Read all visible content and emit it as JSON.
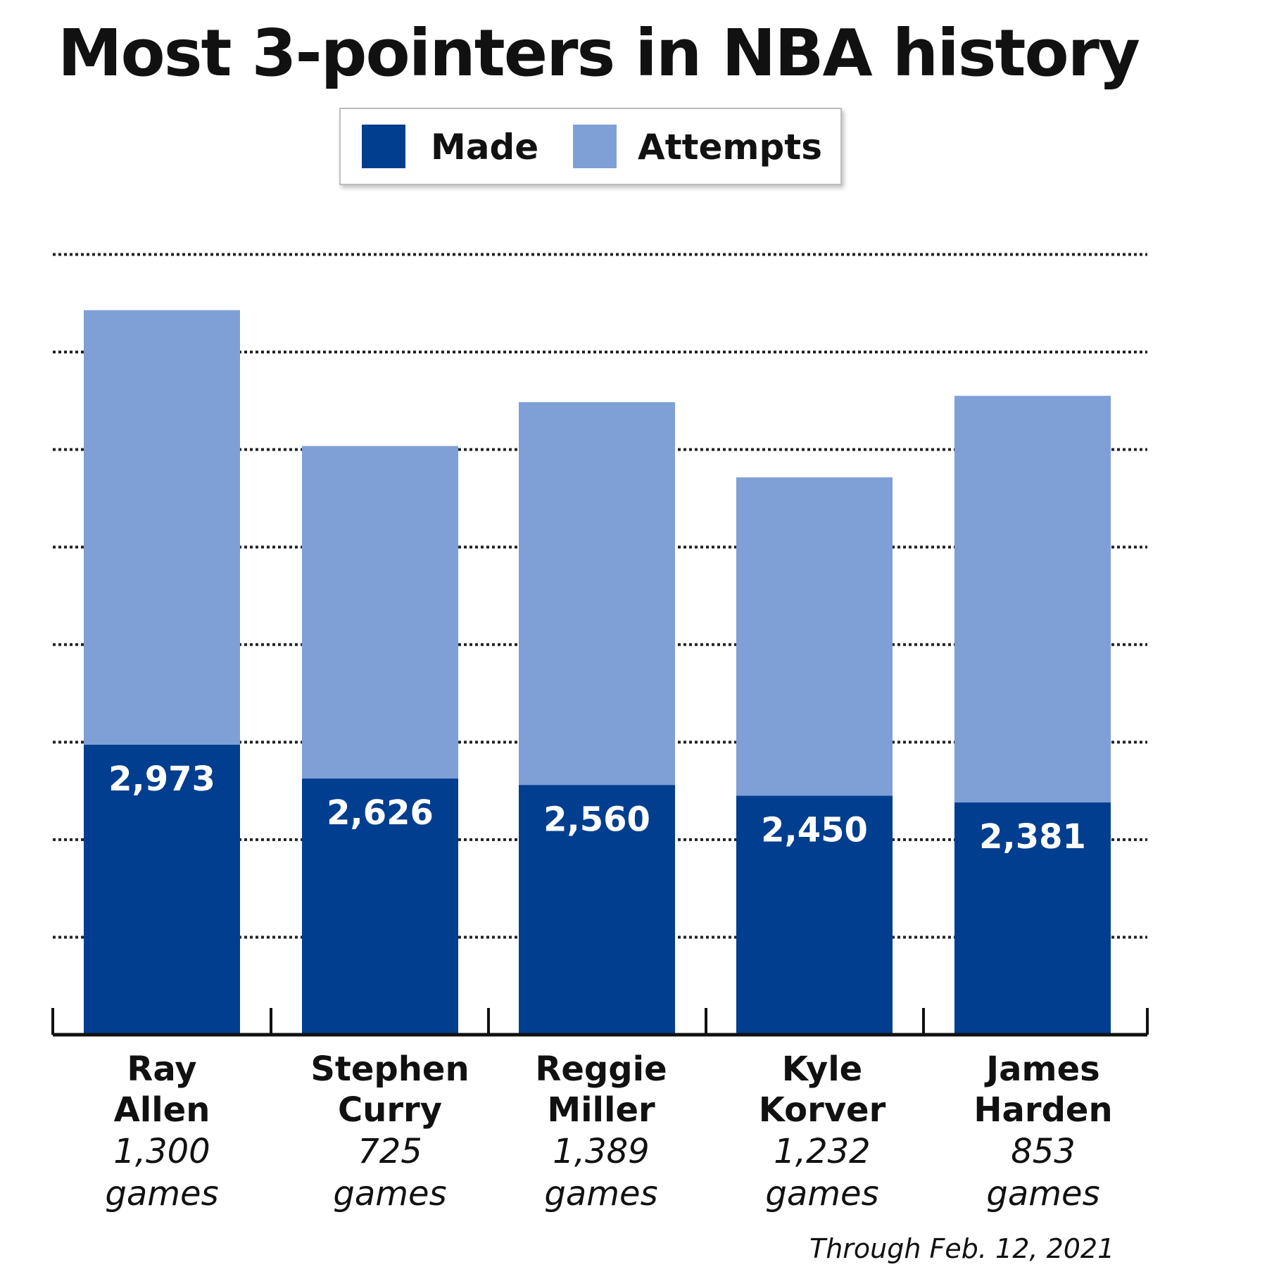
{
  "chart_data": {
    "type": "bar",
    "title": "Most 3-pointers in NBA history",
    "legend": [
      {
        "name": "Made",
        "color": "#023e8f"
      },
      {
        "name": "Attempts",
        "color": "#7f9fd7"
      }
    ],
    "legend_position": "top-center",
    "grid": true,
    "categories": [
      "Ray Allen",
      "Stephen Curry",
      "Reggie Miller",
      "Kyle Korver",
      "James Harden"
    ],
    "series": [
      {
        "name": "Made",
        "values": [
          2973,
          2626,
          2560,
          2450,
          2381
        ]
      },
      {
        "name": "Attempts",
        "values": [
          7429,
          6036,
          6486,
          5715,
          6551
        ]
      }
    ],
    "ylim": [
      0,
      9000
    ],
    "data_labels": [
      "2,973",
      "2,626",
      "2,560",
      "2,450",
      "2,381"
    ],
    "players": [
      {
        "first": "Ray",
        "last": "Allen",
        "games": "1,300",
        "games_unit": "games"
      },
      {
        "first": "Stephen",
        "last": "Curry",
        "games": "725",
        "games_unit": "games"
      },
      {
        "first": "Reggie",
        "last": "Miller",
        "games": "1,389",
        "games_unit": "games"
      },
      {
        "first": "Kyle",
        "last": "Korver",
        "games": "1,232",
        "games_unit": "games"
      },
      {
        "first": "James",
        "last": "Harden",
        "games": "853",
        "games_unit": "games"
      }
    ],
    "footnote": "Through Feb. 12, 2021"
  }
}
